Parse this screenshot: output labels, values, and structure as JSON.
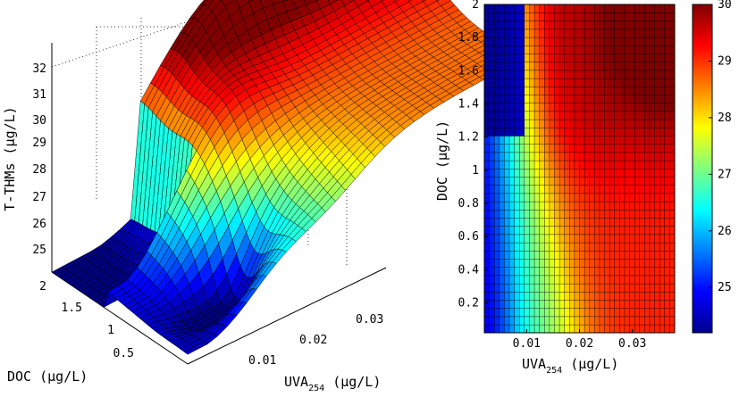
{
  "chart_data": [
    {
      "type": "surface",
      "zlabel": "T-THMs",
      "zlabel_unit": "(µg/L)",
      "xlabel": "UVA",
      "xlabel_sub": "254",
      "xlabel_unit": "(µg/L)",
      "ylabel": "DOC",
      "ylabel_unit": "(µg/L)",
      "z_ticks": [
        "25",
        "26",
        "27",
        "28",
        "29",
        "30",
        "31",
        "32"
      ],
      "x_ticks": [
        "0.01",
        "0.02",
        "0.03"
      ],
      "y_ticks": [
        "0.5",
        "1",
        "1.5",
        "2"
      ],
      "xlim": [
        0.0,
        0.038
      ],
      "ylim": [
        0.0,
        2.0
      ],
      "zlim": [
        24.5,
        32.0
      ],
      "grid": true,
      "colormap": "jet"
    },
    {
      "type": "heatmap",
      "xlabel": "UVA",
      "xlabel_sub": "254",
      "xlabel_unit": "(µg/L)",
      "ylabel": "DOC",
      "ylabel_unit": "(µg/L)",
      "x_ticks": [
        "0.01",
        "0.02",
        "0.03"
      ],
      "y_ticks": [
        "0.2",
        "0.4",
        "0.6",
        "0.8",
        "1",
        "1.2",
        "1.4",
        "1.6",
        "1.8",
        "2"
      ],
      "xlim": [
        0.002,
        0.038
      ],
      "ylim": [
        0.02,
        2.0
      ],
      "colorbar_ticks": [
        "25",
        "26",
        "27",
        "28",
        "29",
        "30"
      ],
      "colorbar_range": [
        24.2,
        30.0
      ],
      "colormap": "jet"
    }
  ]
}
